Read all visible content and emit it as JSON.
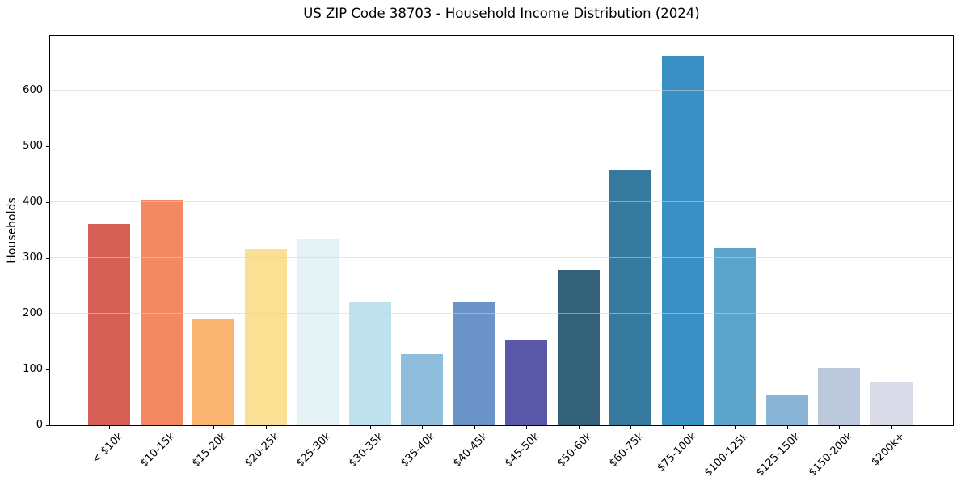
{
  "chart_data": {
    "type": "bar",
    "title": "US ZIP Code 38703 - Household Income Distribution (2024)",
    "xlabel": "",
    "ylabel": "Households",
    "categories": [
      "< $10k",
      "$10-15k",
      "$15-20k",
      "$20-25k",
      "$25-30k",
      "$30-35k",
      "$35-40k",
      "$40-45k",
      "$45-50k",
      "$50-60k",
      "$60-75k",
      "$75-100k",
      "$100-125k",
      "$125-150k",
      "$150-200k",
      "$200k+"
    ],
    "values": [
      360,
      404,
      191,
      316,
      335,
      222,
      128,
      220,
      154,
      278,
      458,
      662,
      317,
      53,
      103,
      77
    ],
    "bar_colors": [
      "#d65f55",
      "#f28963",
      "#f9b470",
      "#fbe094",
      "#e4f2f6",
      "#bfe0ed",
      "#8fbedc",
      "#6b93c7",
      "#5b57a9",
      "#33617a",
      "#36799f",
      "#3890c4",
      "#5ca4ca",
      "#8ab4d6",
      "#bcc9dd",
      "#d9dae7"
    ],
    "yticks": [
      0,
      100,
      200,
      300,
      400,
      500,
      600
    ],
    "ylim": [
      0,
      698
    ],
    "grid": "horizontal-light-over-bars",
    "legend": "none",
    "background": "#ffffff"
  }
}
